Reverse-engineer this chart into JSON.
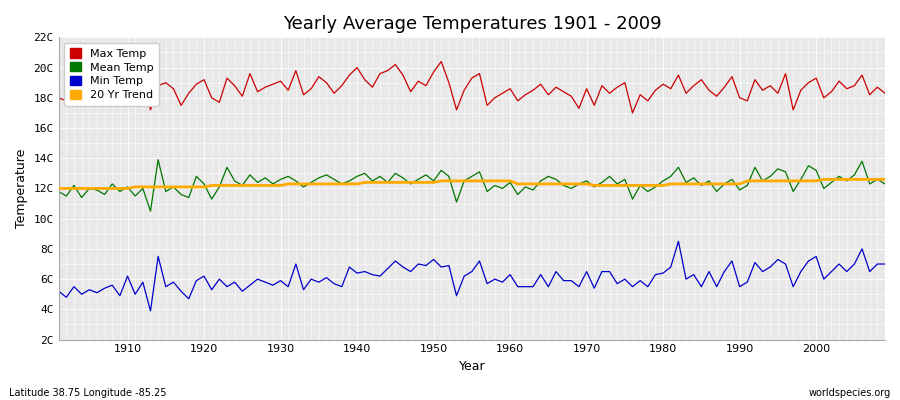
{
  "title": "Yearly Average Temperatures 1901 - 2009",
  "xlabel": "Year",
  "ylabel": "Temperature",
  "year_start": 1901,
  "year_end": 2009,
  "ylim": [
    2,
    22
  ],
  "yticks": [
    2,
    4,
    6,
    8,
    10,
    12,
    14,
    16,
    18,
    20,
    22
  ],
  "ytick_labels": [
    "2C",
    "4C",
    "6C",
    "8C",
    "10C",
    "12C",
    "14C",
    "16C",
    "18C",
    "20C",
    "22C"
  ],
  "xticks": [
    1910,
    1920,
    1930,
    1940,
    1950,
    1960,
    1970,
    1980,
    1990,
    2000
  ],
  "colors": {
    "max_temp": "#cc0000",
    "mean_temp": "#007700",
    "min_temp": "#0000cc",
    "trend": "#ffaa00",
    "plot_bg": "#e8e8e8",
    "fig_bg": "#ffffff",
    "grid": "#ffffff"
  },
  "legend": [
    "Max Temp",
    "Mean Temp",
    "Min Temp",
    "20 Yr Trend"
  ],
  "footnote_left": "Latitude 38.75 Longitude -85.25",
  "footnote_right": "worldspecies.org",
  "max_temp": [
    18.0,
    17.8,
    18.2,
    17.6,
    18.4,
    17.9,
    18.1,
    18.3,
    18.5,
    18.7,
    18.2,
    19.5,
    17.2,
    18.8,
    19.0,
    18.6,
    17.5,
    18.3,
    18.9,
    19.2,
    18.0,
    17.7,
    19.3,
    18.8,
    18.1,
    19.6,
    18.4,
    18.7,
    18.9,
    19.1,
    18.5,
    19.8,
    18.2,
    18.6,
    19.4,
    19.0,
    18.3,
    18.8,
    19.5,
    20.0,
    19.2,
    18.7,
    19.6,
    19.8,
    20.2,
    19.5,
    18.4,
    19.1,
    18.8,
    19.7,
    20.4,
    19.0,
    17.2,
    18.5,
    19.3,
    19.6,
    17.5,
    18.0,
    18.3,
    18.6,
    17.8,
    18.2,
    18.5,
    18.9,
    18.2,
    18.7,
    18.4,
    18.1,
    17.3,
    18.6,
    17.5,
    18.8,
    18.3,
    18.7,
    19.0,
    17.0,
    18.2,
    17.8,
    18.5,
    18.9,
    18.6,
    19.5,
    18.3,
    18.8,
    19.2,
    18.5,
    18.1,
    18.7,
    19.4,
    18.0,
    17.8,
    19.2,
    18.5,
    18.8,
    18.3,
    19.6,
    17.2,
    18.5,
    19.0,
    19.3,
    18.0,
    18.4,
    19.1,
    18.6,
    18.8,
    19.5,
    18.2,
    18.7,
    18.3
  ],
  "mean_temp": [
    11.8,
    11.5,
    12.2,
    11.4,
    12.0,
    11.9,
    11.6,
    12.3,
    11.8,
    12.1,
    11.5,
    12.0,
    10.5,
    13.9,
    11.8,
    12.1,
    11.6,
    11.4,
    12.8,
    12.3,
    11.3,
    12.1,
    13.4,
    12.5,
    12.2,
    12.9,
    12.4,
    12.7,
    12.3,
    12.6,
    12.8,
    12.5,
    12.1,
    12.4,
    12.7,
    12.9,
    12.6,
    12.3,
    12.5,
    12.8,
    13.0,
    12.5,
    12.8,
    12.4,
    13.0,
    12.7,
    12.3,
    12.6,
    12.9,
    12.5,
    13.2,
    12.8,
    11.1,
    12.5,
    12.8,
    13.1,
    11.8,
    12.2,
    12.0,
    12.4,
    11.6,
    12.1,
    11.9,
    12.5,
    12.8,
    12.6,
    12.2,
    12.0,
    12.3,
    12.5,
    12.1,
    12.4,
    12.8,
    12.3,
    12.6,
    11.3,
    12.2,
    11.8,
    12.1,
    12.5,
    12.8,
    13.4,
    12.4,
    12.7,
    12.2,
    12.5,
    11.8,
    12.3,
    12.6,
    11.9,
    12.2,
    13.4,
    12.5,
    12.8,
    13.3,
    13.1,
    11.8,
    12.6,
    13.5,
    13.2,
    12.0,
    12.4,
    12.8,
    12.5,
    12.9,
    13.8,
    12.3,
    12.6,
    12.3
  ],
  "min_temp": [
    5.2,
    4.8,
    5.5,
    5.0,
    5.3,
    5.1,
    5.4,
    5.6,
    4.9,
    6.2,
    5.0,
    5.8,
    3.9,
    7.5,
    5.5,
    5.8,
    5.2,
    4.7,
    5.9,
    6.2,
    5.3,
    6.0,
    5.5,
    5.8,
    5.2,
    5.6,
    6.0,
    5.8,
    5.6,
    5.9,
    5.5,
    7.0,
    5.3,
    6.0,
    5.8,
    6.1,
    5.7,
    5.5,
    6.8,
    6.4,
    6.5,
    6.3,
    6.2,
    6.7,
    7.2,
    6.8,
    6.5,
    7.0,
    6.9,
    7.3,
    6.8,
    6.9,
    4.9,
    6.2,
    6.5,
    7.2,
    5.7,
    6.0,
    5.8,
    6.3,
    5.5,
    5.5,
    5.5,
    6.3,
    5.5,
    6.5,
    5.9,
    5.9,
    5.5,
    6.5,
    5.4,
    6.5,
    6.5,
    5.7,
    6.0,
    5.5,
    5.9,
    5.5,
    6.3,
    6.4,
    6.8,
    8.5,
    6.0,
    6.3,
    5.5,
    6.5,
    5.5,
    6.5,
    7.2,
    5.5,
    5.8,
    7.1,
    6.5,
    6.8,
    7.3,
    7.0,
    5.5,
    6.5,
    7.2,
    7.5,
    6.0,
    6.5,
    7.0,
    6.5,
    7.0,
    8.0,
    6.5,
    7.0,
    7.0
  ],
  "trend": [
    12.0,
    12.0,
    12.0,
    12.0,
    12.0,
    12.0,
    12.0,
    12.0,
    12.0,
    12.0,
    12.1,
    12.1,
    12.1,
    12.1,
    12.1,
    12.1,
    12.1,
    12.1,
    12.1,
    12.1,
    12.2,
    12.2,
    12.2,
    12.2,
    12.2,
    12.2,
    12.2,
    12.2,
    12.2,
    12.2,
    12.3,
    12.3,
    12.3,
    12.3,
    12.3,
    12.3,
    12.3,
    12.3,
    12.3,
    12.3,
    12.4,
    12.4,
    12.4,
    12.4,
    12.4,
    12.4,
    12.4,
    12.4,
    12.4,
    12.4,
    12.5,
    12.5,
    12.5,
    12.5,
    12.5,
    12.5,
    12.5,
    12.5,
    12.5,
    12.5,
    12.3,
    12.3,
    12.3,
    12.3,
    12.3,
    12.3,
    12.3,
    12.3,
    12.3,
    12.3,
    12.2,
    12.2,
    12.2,
    12.2,
    12.2,
    12.2,
    12.2,
    12.2,
    12.2,
    12.2,
    12.3,
    12.3,
    12.3,
    12.3,
    12.3,
    12.3,
    12.3,
    12.3,
    12.3,
    12.3,
    12.5,
    12.5,
    12.5,
    12.5,
    12.5,
    12.5,
    12.5,
    12.5,
    12.5,
    12.5,
    12.6,
    12.6,
    12.6,
    12.6,
    12.6,
    12.6,
    12.6,
    12.6,
    12.6
  ]
}
